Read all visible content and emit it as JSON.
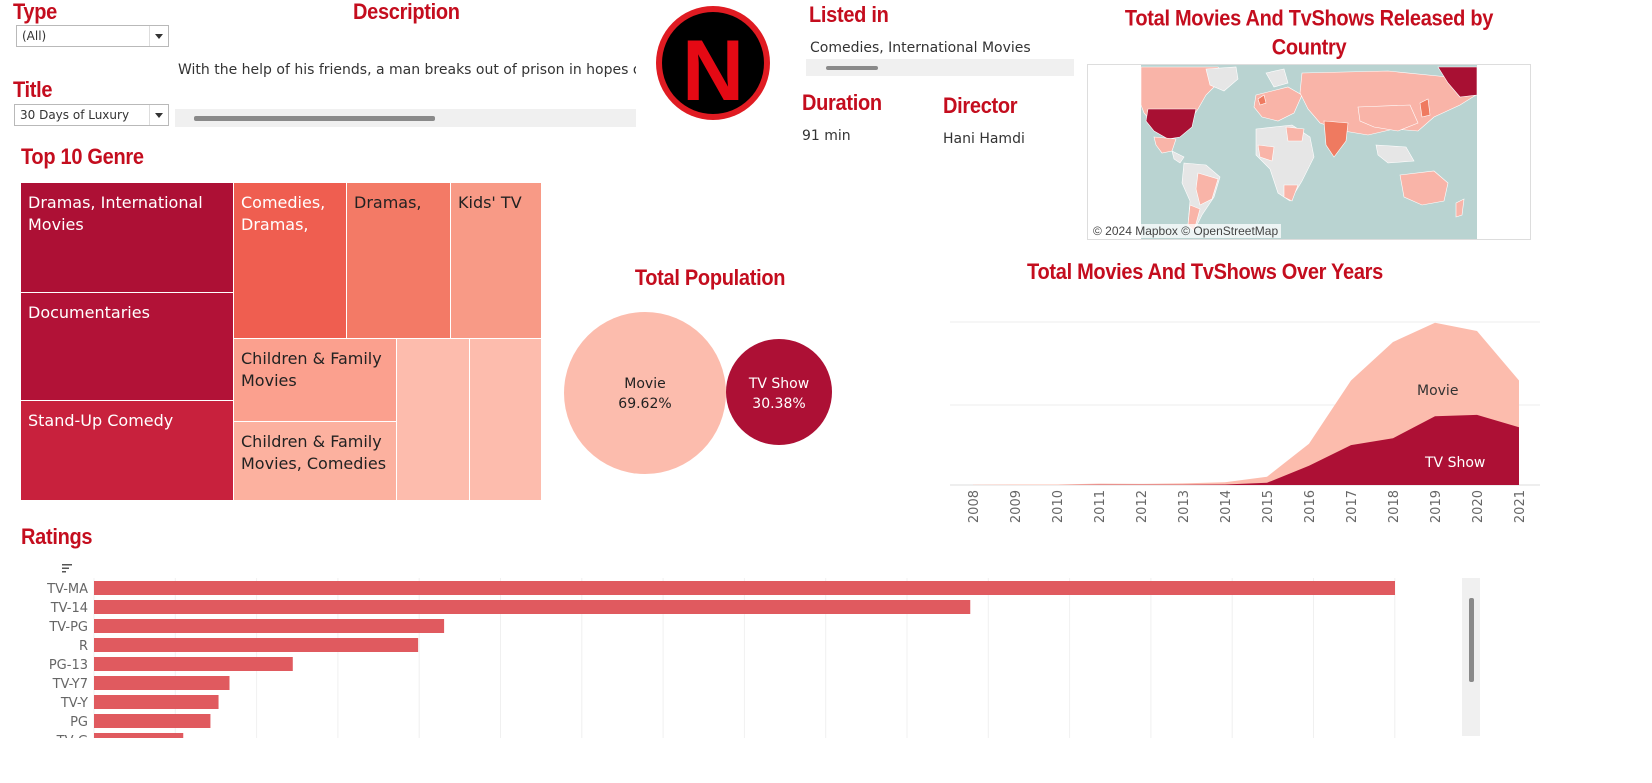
{
  "filters": {
    "type": {
      "label": "Type",
      "value": "(All)"
    },
    "title": {
      "label": "Title",
      "value": "30 Days of Luxury"
    }
  },
  "description": {
    "label": "Description",
    "text": "With the help of his friends, a man breaks out of prison in hopes of re"
  },
  "logo": {
    "letter": "N"
  },
  "listed_in": {
    "label": "Listed in",
    "value": "Comedies, International Movies"
  },
  "duration": {
    "label": "Duration",
    "value": "91 min"
  },
  "director": {
    "label": "Director",
    "value": "Hani Hamdi"
  },
  "map": {
    "title_line1": "Total Movies And TvShows Released by",
    "title_line2": "Country",
    "attribution": "© 2024 Mapbox © OpenStreetMap",
    "colors": {
      "water": "#b9d3d1",
      "land": "#e6e6e6",
      "low": "#f9b4a8",
      "mid": "#ef7a60",
      "high": "#a81033"
    }
  },
  "treemap": {
    "title": "Top 10 Genre",
    "tiles": [
      {
        "label": "Dramas, International Movies",
        "color": "#ad1035",
        "text_color": "#ffffff"
      },
      {
        "label": "Documentaries",
        "color": "#b21237",
        "text_color": "#ffffff"
      },
      {
        "label": "Stand-Up Comedy",
        "color": "#c8213d",
        "text_color": "#ffffff"
      },
      {
        "label": "Comedies, Dramas,",
        "color": "#ef5e50",
        "text_color": "#ffffff"
      },
      {
        "label": "Dramas,",
        "color": "#f37a66",
        "text_color": "#222222"
      },
      {
        "label": "Kids' TV",
        "color": "#f89a86",
        "text_color": "#222222"
      },
      {
        "label": "Children & Family Movies",
        "color": "#fba08e",
        "text_color": "#222222"
      },
      {
        "label": "Children & Family Movies, Comedies",
        "color": "#fcb19f",
        "text_color": "#222222"
      },
      {
        "label": "",
        "color": "#fdbcad",
        "text_color": "#222222"
      },
      {
        "label": "",
        "color": "#fdbcad",
        "text_color": "#222222"
      }
    ]
  },
  "population": {
    "title": "Total Population",
    "movie": {
      "label": "Movie",
      "value": "69.62%",
      "color": "#fcbcad"
    },
    "tvshow": {
      "label": "TV Show",
      "value": "30.38%",
      "color": "#ad1035"
    }
  },
  "chart_data": [
    {
      "type": "area",
      "title": "Total Movies And TvShows Over Years",
      "x": [
        2008,
        2009,
        2010,
        2011,
        2012,
        2013,
        2014,
        2015,
        2016,
        2017,
        2018,
        2019,
        2020,
        2021
      ],
      "series": [
        {
          "name": "Movie",
          "values": [
            1,
            2,
            2,
            5,
            4,
            6,
            10,
            30,
            150,
            380,
            520,
            590,
            560,
            380
          ],
          "color": "#fcbcad"
        },
        {
          "name": "TV Show",
          "values": [
            0,
            0,
            0,
            1,
            1,
            1,
            2,
            8,
            70,
            145,
            170,
            250,
            255,
            210
          ],
          "color": "#ad1035"
        }
      ],
      "xlabel": "",
      "ylabel": "",
      "legend": "inline labels"
    },
    {
      "type": "bar",
      "title": "Ratings",
      "orientation": "horizontal",
      "categories": [
        "TV-MA",
        "TV-14",
        "TV-PG",
        "R",
        "PG-13",
        "TV-Y7",
        "TV-Y",
        "PG",
        "TV-G"
      ],
      "values": [
        3207,
        2160,
        863,
        799,
        490,
        334,
        307,
        287,
        220
      ],
      "color": "#e05a5f"
    }
  ]
}
